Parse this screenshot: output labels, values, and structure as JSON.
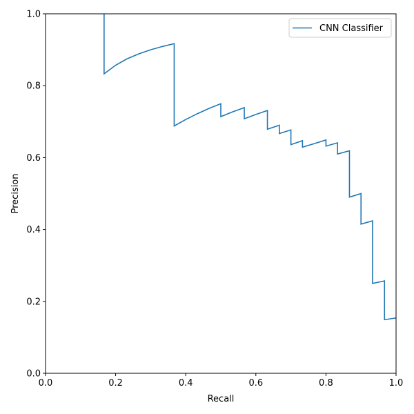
{
  "chart_data": {
    "type": "line",
    "xlabel": "Recall",
    "ylabel": "Precision",
    "xlim": [
      0.0,
      1.0
    ],
    "ylim": [
      0.0,
      1.0
    ],
    "xticks": [
      0.0,
      0.2,
      0.4,
      0.6,
      0.8,
      1.0
    ],
    "yticks": [
      0.0,
      0.2,
      0.4,
      0.6,
      0.8,
      1.0
    ],
    "grid": false,
    "legend": "top-right",
    "series": [
      {
        "name": "CNN Classifier",
        "color": "#1f77b4",
        "x": [
          0.167,
          0.167,
          0.167,
          0.2,
          0.233,
          0.267,
          0.3,
          0.333,
          0.367,
          0.367,
          0.4,
          0.433,
          0.467,
          0.5,
          0.5,
          0.533,
          0.567,
          0.567,
          0.6,
          0.633,
          0.633,
          0.667,
          0.667,
          0.7,
          0.7,
          0.733,
          0.733,
          0.767,
          0.8,
          0.8,
          0.833,
          0.833,
          0.867,
          0.867,
          0.9,
          0.9,
          0.933,
          0.933,
          0.967,
          0.967,
          1.0
        ],
        "y": [
          1.0,
          0.833,
          0.833,
          0.857,
          0.875,
          0.889,
          0.9,
          0.909,
          0.917,
          0.688,
          0.706,
          0.722,
          0.737,
          0.75,
          0.714,
          0.727,
          0.739,
          0.708,
          0.72,
          0.731,
          0.679,
          0.69,
          0.667,
          0.677,
          0.636,
          0.647,
          0.629,
          0.639,
          0.649,
          0.632,
          0.641,
          0.61,
          0.619,
          0.49,
          0.5,
          0.415,
          0.424,
          0.25,
          0.257,
          0.149,
          0.154
        ]
      }
    ]
  }
}
